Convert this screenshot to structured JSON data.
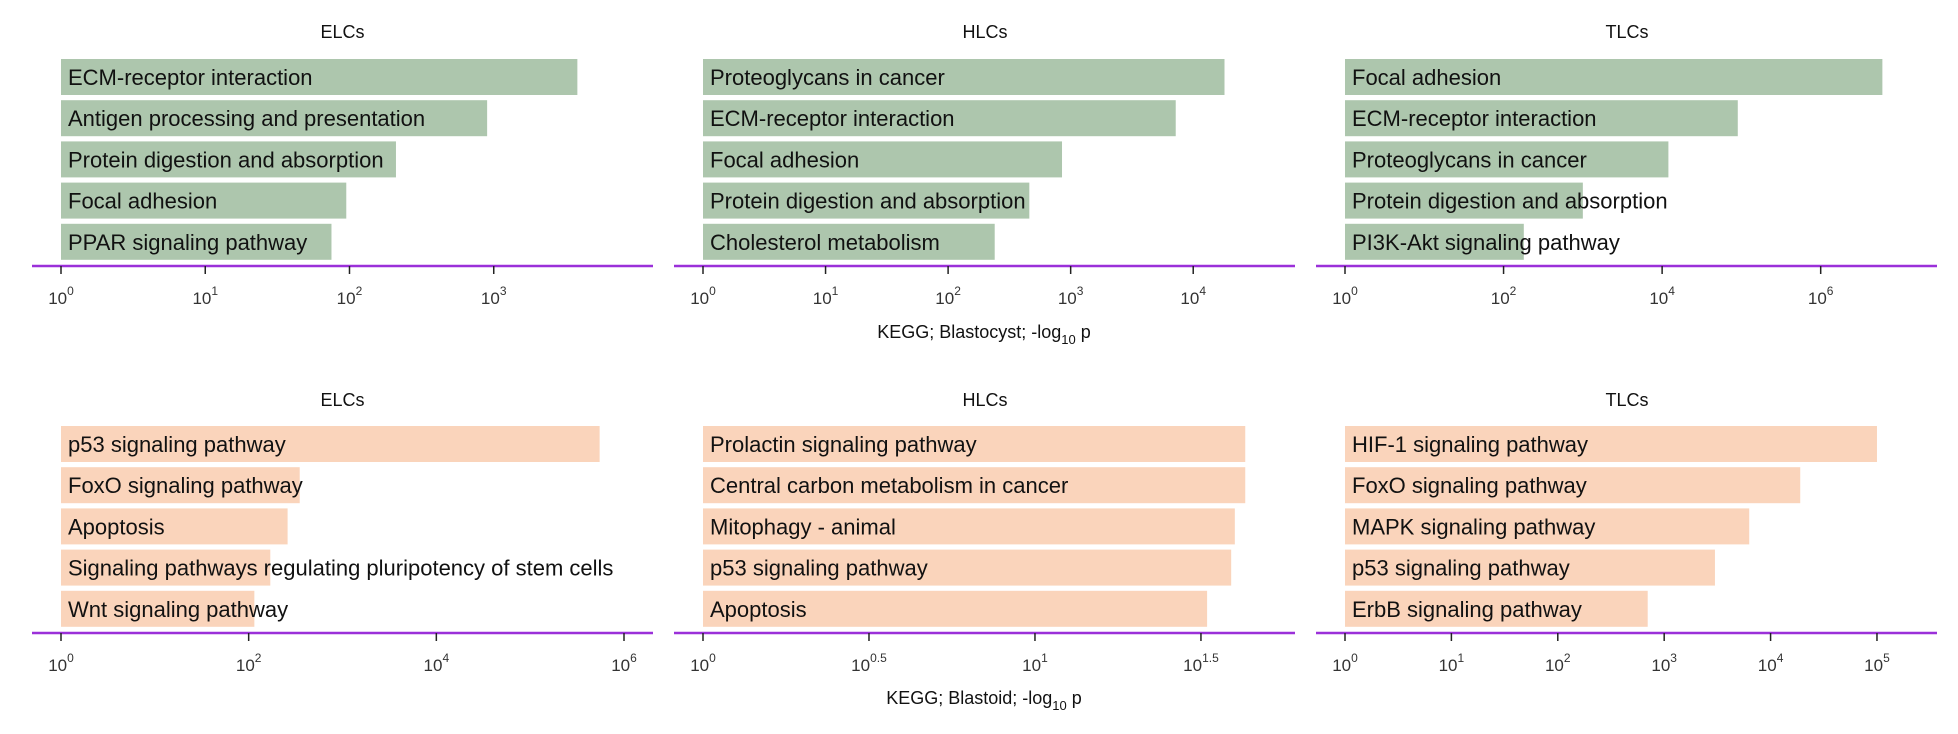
{
  "chart_data": [
    {
      "type": "bar",
      "orientation": "horizontal",
      "scale": "log10",
      "title": "ELCs",
      "categories": [
        "ECM-receptor interaction",
        "Antigen processing and presentation",
        "Protein digestion and absorption",
        "Focal adhesion",
        "PPAR signaling pathway"
      ],
      "values": [
        3800,
        900,
        210,
        95,
        75
      ],
      "xlim": [
        1,
        8000
      ],
      "ticks": [
        {
          "base": "10",
          "exp": "0",
          "value": 1
        },
        {
          "base": "10",
          "exp": "1",
          "value": 10
        },
        {
          "base": "10",
          "exp": "2",
          "value": 100
        },
        {
          "base": "10",
          "exp": "3",
          "value": 1000
        }
      ],
      "color": "#adc6ad",
      "axis_color": "#9b30d9"
    },
    {
      "type": "bar",
      "orientation": "horizontal",
      "scale": "log10",
      "title": "HLCs",
      "categories": [
        "Proteoglycans in cancer",
        "ECM-receptor interaction",
        "Focal adhesion",
        "Protein digestion and absorption",
        "Cholesterol metabolism"
      ],
      "values": [
        18000,
        7200,
        850,
        460,
        240
      ],
      "xlim": [
        1,
        40000
      ],
      "ticks": [
        {
          "base": "10",
          "exp": "0",
          "value": 1
        },
        {
          "base": "10",
          "exp": "1",
          "value": 10
        },
        {
          "base": "10",
          "exp": "2",
          "value": 100
        },
        {
          "base": "10",
          "exp": "3",
          "value": 1000
        },
        {
          "base": "10",
          "exp": "4",
          "value": 10000
        }
      ],
      "color": "#adc6ad",
      "axis_color": "#9b30d9"
    },
    {
      "type": "bar",
      "orientation": "horizontal",
      "scale": "log10",
      "title": "TLCs",
      "categories": [
        "Focal adhesion",
        "ECM-receptor interaction",
        "Proteoglycans in cancer",
        "Protein digestion and absorption",
        "PI3K-Akt signaling pathway"
      ],
      "values": [
        6000000,
        90000,
        12000,
        1000,
        180
      ],
      "xlim": [
        1,
        13000000
      ],
      "ticks": [
        {
          "base": "10",
          "exp": "0",
          "value": 1
        },
        {
          "base": "10",
          "exp": "2",
          "value": 100
        },
        {
          "base": "10",
          "exp": "4",
          "value": 10000
        },
        {
          "base": "10",
          "exp": "6",
          "value": 1000000
        }
      ],
      "color": "#adc6ad",
      "axis_color": "#9b30d9"
    },
    {
      "type": "bar",
      "orientation": "horizontal",
      "scale": "log10",
      "title": "ELCs",
      "categories": [
        "p53 signaling pathway",
        "FoxO signaling pathway",
        "Apoptosis",
        "Signaling pathways regulating pluripotency of stem cells",
        "Wnt signaling pathway"
      ],
      "values": [
        550000,
        350,
        260,
        170,
        115
      ],
      "xlim": [
        1,
        1000000
      ],
      "ticks": [
        {
          "base": "10",
          "exp": "0",
          "value": 1
        },
        {
          "base": "10",
          "exp": "2",
          "value": 100
        },
        {
          "base": "10",
          "exp": "4",
          "value": 10000
        },
        {
          "base": "10",
          "exp": "6",
          "value": 1000000
        }
      ],
      "color": "#fad4bb",
      "axis_color": "#9b30d9"
    },
    {
      "type": "bar",
      "orientation": "horizontal",
      "scale": "log10",
      "title": "HLCs",
      "categories": [
        "Prolactin signaling pathway",
        "Central carbon metabolism in cancer",
        "Mitophagy - animal",
        "p53 signaling pathway",
        "Apoptosis"
      ],
      "values": [
        43,
        43,
        40,
        39,
        33
      ],
      "xlim": [
        1,
        50
      ],
      "ticks": [
        {
          "base": "10",
          "exp": "0",
          "value": 1
        },
        {
          "base": "10",
          "exp": "0.5",
          "value": 3.1623
        },
        {
          "base": "10",
          "exp": "1",
          "value": 10
        },
        {
          "base": "10",
          "exp": "1.5",
          "value": 31.623
        }
      ],
      "color": "#fad4bb",
      "axis_color": "#9b30d9"
    },
    {
      "type": "bar",
      "orientation": "horizontal",
      "scale": "log10",
      "title": "TLCs",
      "categories": [
        "HIF-1 signaling pathway",
        "FoxO signaling pathway",
        "MAPK signaling pathway",
        "p53 signaling pathway",
        "ErbB signaling pathway"
      ],
      "values": [
        100000,
        19000,
        6300,
        3000,
        700
      ],
      "xlim": [
        1,
        200000
      ],
      "ticks": [
        {
          "base": "10",
          "exp": "0",
          "value": 1
        },
        {
          "base": "10",
          "exp": "1",
          "value": 10
        },
        {
          "base": "10",
          "exp": "2",
          "value": 100
        },
        {
          "base": "10",
          "exp": "3",
          "value": 1000
        },
        {
          "base": "10",
          "exp": "4",
          "value": 10000
        },
        {
          "base": "10",
          "exp": "5",
          "value": 100000
        }
      ],
      "color": "#fad4bb",
      "axis_color": "#9b30d9"
    }
  ],
  "row_xlabels": [
    {
      "prefix": "KEGG; Blastocyst; -log",
      "sub": "10",
      "suffix": " p"
    },
    {
      "prefix": "KEGG; Blastoid; -log",
      "sub": "10",
      "suffix": " p"
    }
  ]
}
